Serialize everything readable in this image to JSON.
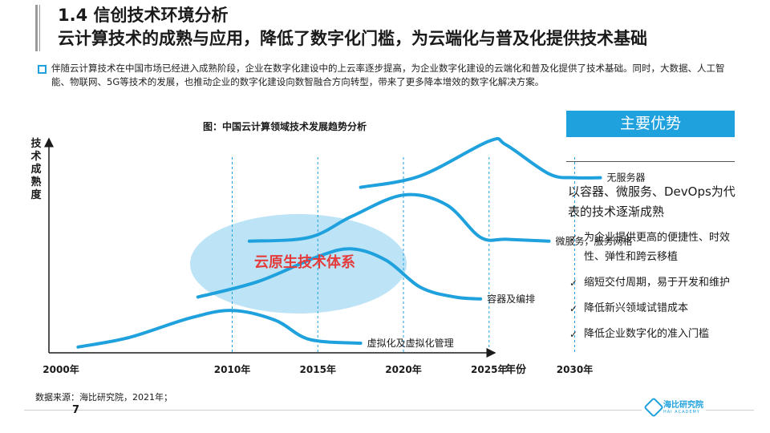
{
  "header": {
    "section_title": "1.4 信创技术环境分析",
    "main_title": "云计算技术的成熟与应用，降低了数字化门槛，为云端化与普及化提供技术基础"
  },
  "intro": {
    "text": "伴随云计算技术在中国市场已经进入成熟阶段，企业在数字化建设中的上云率逐步提高，为企业数字化建设的云端化和普及化提供了技术基础。同时，大数据、人工智能、物联网、5G等技术的发展，也推动企业的数字化建设向数智融合方向转型，带来了更多降本增效的数字化解决方案。"
  },
  "chart_data": {
    "type": "line",
    "title": "图：中国云计算领域技术发展趋势分析",
    "ylabel": "技术成熟度",
    "xlabel": "年份",
    "x_ticks": [
      "2000年",
      "2010年",
      "2015年",
      "2020年",
      "2025年",
      "2030年"
    ],
    "x_tick_values": [
      2000,
      2010,
      2015,
      2020,
      2025,
      2030
    ],
    "xlim": [
      2000,
      2032
    ],
    "ylim": [
      0,
      100
    ],
    "gridlines": "vertical dashed at 2010, 2015, 2020, 2025, 2030",
    "highlight_label": "云原生技术体系",
    "colors": {
      "line": "#1ea1dd",
      "ellipse": "#b8e2f6",
      "highlight_text": "#e53b3b"
    },
    "series": [
      {
        "name": "虚拟化及虚拟化管理",
        "x": [
          2001,
          2004,
          2007.5,
          2010,
          2012.5,
          2014.5,
          2017.5
        ],
        "y": [
          3,
          8,
          18,
          22,
          17,
          7,
          5
        ]
      },
      {
        "name": "容器及编排",
        "x": [
          2008,
          2011.5,
          2015,
          2017,
          2019,
          2021,
          2023,
          2024.5
        ],
        "y": [
          29,
          37,
          50,
          54,
          48,
          34,
          29,
          28
        ]
      },
      {
        "name": "微服务，服务网格",
        "x": [
          2011,
          2014.5,
          2017,
          2020,
          2022.5,
          2024.5,
          2026,
          2028.5
        ],
        "y": [
          58,
          60,
          71,
          82,
          77,
          60,
          59,
          58
        ]
      },
      {
        "name": "无服务器",
        "x": [
          2017.5,
          2021,
          2025,
          2026,
          2028.5,
          2030,
          2031.5
        ],
        "y": [
          86,
          92,
          110,
          108,
          93,
          91,
          91
        ]
      }
    ]
  },
  "advantages": {
    "header": "主要优势",
    "lead": "以容器、微服务、DevOps为代表的技术逐渐成熟",
    "items": [
      "为企业提供更高的便捷性、时效性、弹性和跨云移植",
      "缩短交付周期，易于开发和维护",
      "降低新兴领域试错成本",
      "降低企业数字化的准入门槛"
    ]
  },
  "footer": {
    "source": "数据来源：海比研究院，2021年；",
    "page_number": "7",
    "logo_text": "海比研究院",
    "logo_sub": "HAI ACADEMY"
  }
}
